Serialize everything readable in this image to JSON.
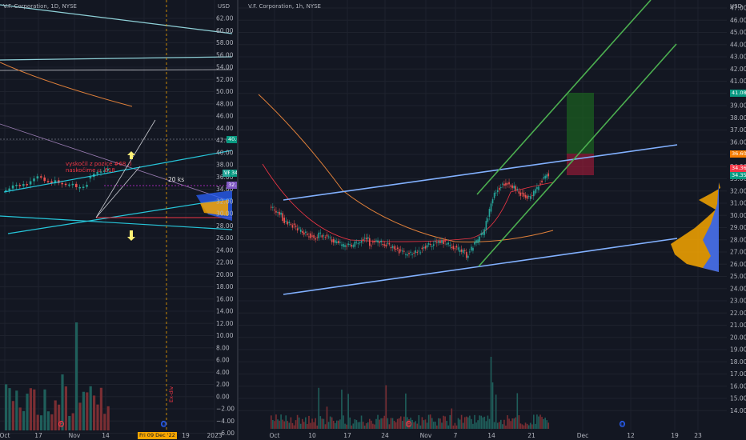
{
  "left": {
    "title": "V.F. Corporation, 1D, NYSE",
    "price_axis": {
      "currency": "USD",
      "labels": [
        "62.00",
        "60.00",
        "58.00",
        "56.00",
        "54.00",
        "52.00",
        "50.00",
        "48.00",
        "46.00",
        "44.00",
        "42.00",
        "40.00",
        "38.00",
        "36.00",
        "34.00",
        "32.00",
        "30.00",
        "28.00",
        "26.00",
        "24.00",
        "22.00",
        "20.00",
        "18.00",
        "16.00",
        "14.00",
        "12.00",
        "10.00",
        "8.00",
        "6.00",
        "4.00",
        "2.00",
        "0.00",
        "−2.00",
        "−4.00",
        "−6.00"
      ]
    },
    "tags": {
      "level_40": "40.06",
      "ticker": "VFC",
      "ticker_price": "34.34",
      "purple_price": "32.57"
    },
    "time_axis": [
      "Oct",
      "17",
      "Nov",
      "14",
      "Dec",
      "19",
      "2023"
    ],
    "date_cursor": "Fri 09 Dec '22",
    "annotation_line1": "vyskočil z pozice #68 ;)",
    "annotation_line2": "naskočime u .618",
    "size_label": "20 ks",
    "event_label": "Ex-div",
    "event_icon": "E",
    "dividend_icon": "D"
  },
  "right": {
    "title": "V.F. Corporation, 1h, NYSE",
    "price_axis": {
      "currency": "USD",
      "labels": [
        "47.00",
        "46.00",
        "45.00",
        "44.00",
        "43.00",
        "42.00",
        "41.00",
        "40.00",
        "39.00",
        "38.00",
        "37.00",
        "36.00",
        "35.00",
        "34.00",
        "33.00",
        "32.00",
        "31.00",
        "30.00",
        "29.00",
        "28.00",
        "27.00",
        "26.00",
        "25.00",
        "24.00",
        "23.00",
        "22.00",
        "21.00",
        "20.00",
        "19.00",
        "18.00",
        "17.00",
        "16.00",
        "15.00",
        "14.00"
      ]
    },
    "tags": {
      "target": "41.08",
      "entry": "36.60",
      "price_a": "34.36",
      "price_b": "34.35"
    },
    "time_axis": [
      "Oct",
      "10",
      "17",
      "24",
      "Nov",
      "7",
      "14",
      "21",
      "Dec",
      "12",
      "19",
      "23"
    ],
    "event_icon": "E",
    "dividend_icon": "D"
  }
}
